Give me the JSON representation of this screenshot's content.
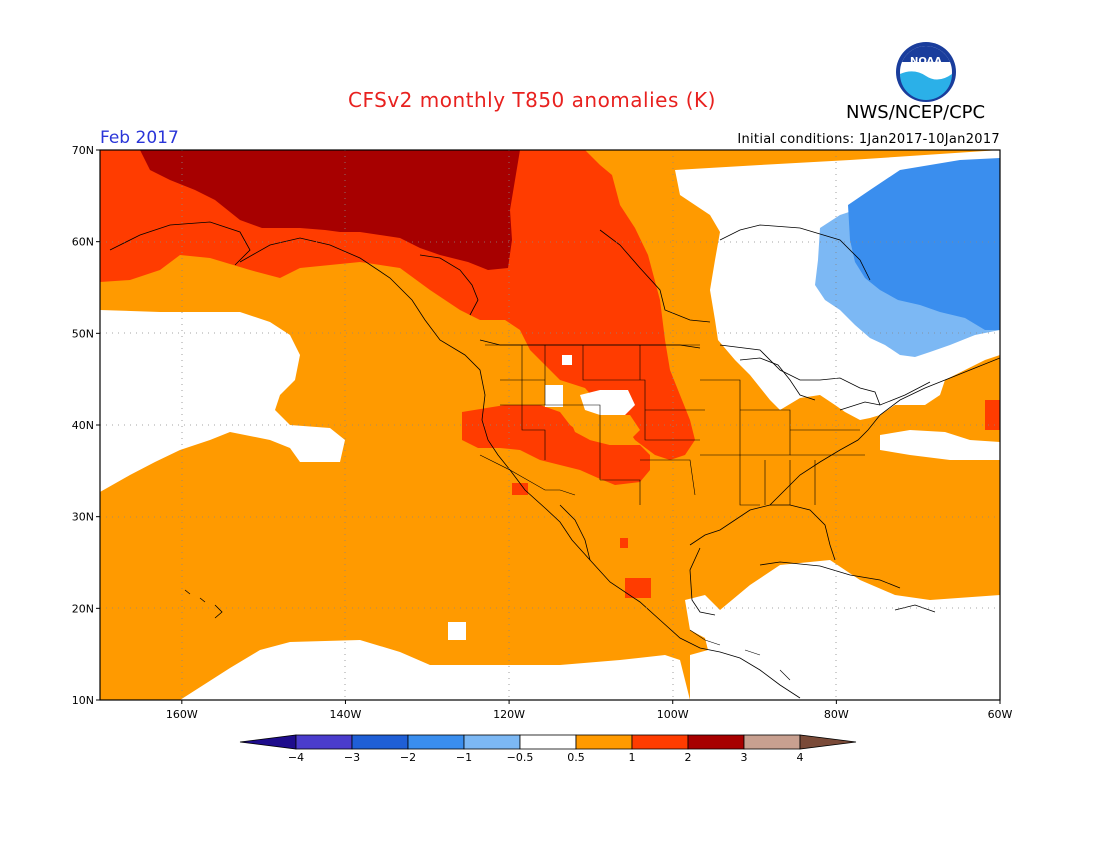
{
  "header": {
    "title": "CFSv2 monthly T850 anomalies (K)",
    "organization": "NWS/NCEP/CPC",
    "logo_text": "NOAA",
    "period": "Feb 2017",
    "initial_conditions": "Initial conditions: 1Jan2017-10Jan2017"
  },
  "map": {
    "lat_range": [
      10,
      70
    ],
    "lon_range": [
      -170,
      -60
    ],
    "lat_ticks": [
      {
        "value": 70,
        "label": "70N"
      },
      {
        "value": 60,
        "label": "60N"
      },
      {
        "value": 50,
        "label": "50N"
      },
      {
        "value": 40,
        "label": "40N"
      },
      {
        "value": 30,
        "label": "30N"
      },
      {
        "value": 20,
        "label": "20N"
      },
      {
        "value": 10,
        "label": "10N"
      }
    ],
    "lon_ticks": [
      {
        "value": -160,
        "label": "160W"
      },
      {
        "value": -140,
        "label": "140W"
      },
      {
        "value": -120,
        "label": "120W"
      },
      {
        "value": -100,
        "label": "100W"
      },
      {
        "value": -80,
        "label": "80W"
      },
      {
        "value": -60,
        "label": "60W"
      }
    ],
    "grid": true
  },
  "colorbar": {
    "colors": [
      "#1e0c8c",
      "#4a3ccc",
      "#1f5fd6",
      "#3a8eee",
      "#7cb8f4",
      "#ffffff",
      "#ff9a00",
      "#ff3c00",
      "#a70000",
      "#c8a090",
      "#7a4a38"
    ],
    "tick_labels": [
      "−4",
      "−3",
      "−2",
      "−1",
      "−0.5",
      "0.5",
      "1",
      "2",
      "3",
      "4"
    ]
  }
}
